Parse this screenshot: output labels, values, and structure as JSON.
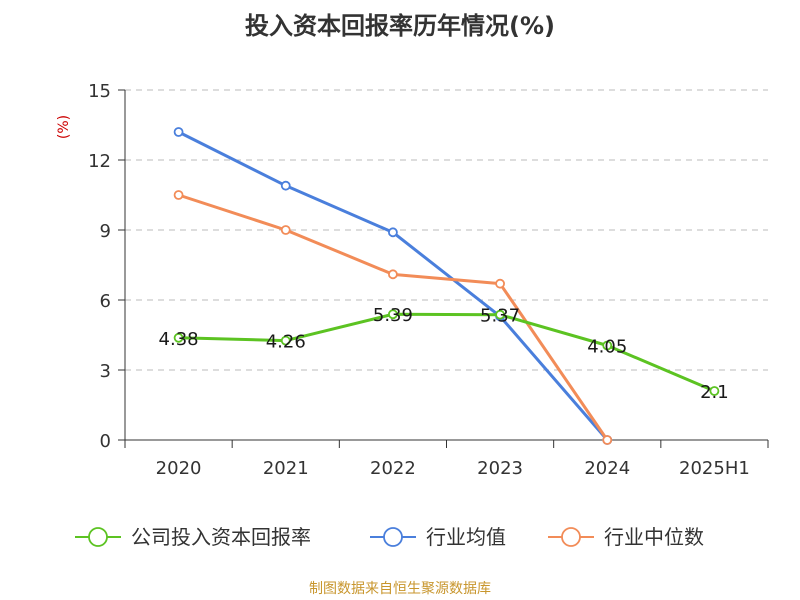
{
  "title": "投入资本回报率历年情况(%)",
  "source": "制图数据来自恒生聚源数据库",
  "colors": {
    "company": "#5cc322",
    "industry_avg": "#4a7fdc",
    "industry_median": "#f28c58",
    "grid": "#bbbbbb",
    "unit": "#cc0000"
  },
  "chart_data": {
    "type": "line",
    "title": "投入资本回报率历年情况(%)",
    "categories": [
      "2020",
      "2021",
      "2022",
      "2023",
      "2024",
      "2025H1"
    ],
    "xlabel": "",
    "ylabel": "(%)",
    "ylim": [
      0,
      15
    ],
    "yticks": [
      0,
      3,
      6,
      9,
      12,
      15
    ],
    "grid": "horizontal-dashed",
    "legend_position": "bottom",
    "series": [
      {
        "name": "公司投入资本回报率",
        "color": "#5cc322",
        "values": [
          4.38,
          4.26,
          5.39,
          5.37,
          4.05,
          2.1
        ],
        "labels": [
          "4.38",
          "4.26",
          "5.39",
          "5.37",
          "4.05",
          "2.1"
        ]
      },
      {
        "name": "行业均值",
        "color": "#4a7fdc",
        "values": [
          13.2,
          10.9,
          8.9,
          5.3,
          0,
          null
        ]
      },
      {
        "name": "行业中位数",
        "color": "#f28c58",
        "values": [
          10.5,
          9.0,
          7.1,
          6.7,
          0,
          null
        ]
      }
    ]
  }
}
